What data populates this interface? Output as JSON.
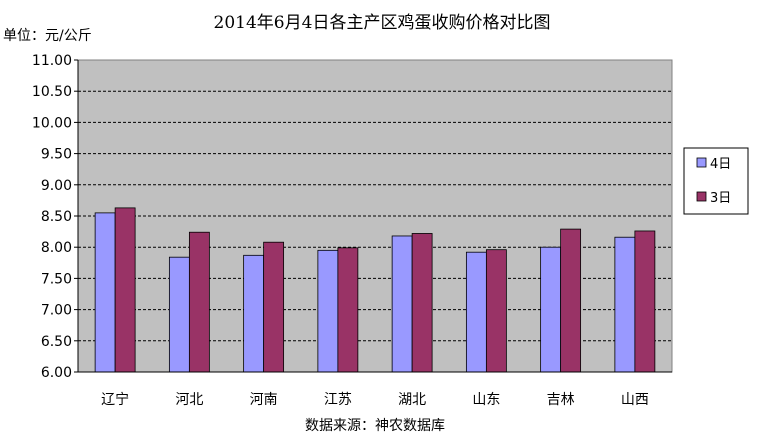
{
  "chart_data": {
    "type": "bar",
    "title": "2014年6月4日各主产区鸡蛋收购价格对比图",
    "unit_label": "单位：元/公斤",
    "source_label": "数据来源：神农数据库",
    "categories": [
      "辽宁",
      "河北",
      "河南",
      "江苏",
      "湖北",
      "山东",
      "吉林",
      "山西"
    ],
    "series": [
      {
        "name": "4日",
        "color": "#9999ff",
        "values": [
          8.55,
          7.84,
          7.87,
          7.95,
          8.18,
          7.92,
          8.0,
          8.16
        ]
      },
      {
        "name": "3日",
        "color": "#993366",
        "values": [
          8.63,
          8.24,
          8.08,
          7.99,
          8.22,
          7.96,
          8.29,
          8.26
        ]
      }
    ],
    "ylim": [
      6.0,
      11.0
    ],
    "yticks": [
      "6.00",
      "6.50",
      "7.00",
      "7.50",
      "8.00",
      "8.50",
      "9.00",
      "9.50",
      "10.00",
      "10.50",
      "11.00"
    ],
    "grid": true,
    "plot_background": "#c0c0c0",
    "legend_position": "right"
  }
}
